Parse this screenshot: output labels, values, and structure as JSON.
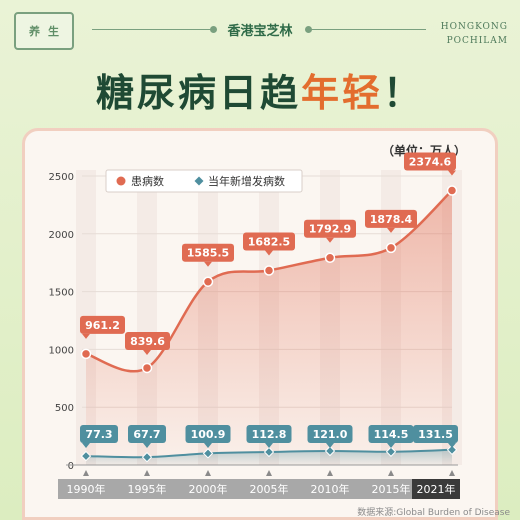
{
  "header": {
    "badge": [
      "养",
      "生"
    ],
    "brand": "香港宝芝林",
    "brand_en_line1": "HONGKONG",
    "brand_en_line2": "POCHILAM",
    "headline_main": "糖尿病日趋",
    "headline_accent": "年轻",
    "headline_end": "！"
  },
  "footer": {
    "source": "数据来源:Global Burden of Disease"
  },
  "colors": {
    "prevalence": "#e06b52",
    "incidence": "#4f8f9f",
    "year_bar_dark": "#3a3a3a",
    "year_bar_light": "#a8a8a8"
  },
  "chart_data": {
    "type": "line",
    "unit": "（单位：万人）",
    "x": [
      "1990年",
      "1995年",
      "2000年",
      "2005年",
      "2010年",
      "2015年",
      "2021年"
    ],
    "ylim": [
      0,
      2500
    ],
    "yticks": [
      0,
      500,
      1000,
      1500,
      2000,
      2500
    ],
    "legend_position": "top-left",
    "series": [
      {
        "name": "患病数",
        "values": [
          961.2,
          839.6,
          1585.5,
          1682.5,
          1792.9,
          1878.4,
          2374.6
        ],
        "labels": [
          "961.2",
          "839.6",
          "1585.5",
          "1682.5",
          "1792.9",
          "1878.4",
          "2374.6"
        ],
        "marker": "circle"
      },
      {
        "name": "当年新增发病数",
        "values": [
          77.3,
          67.7,
          100.9,
          112.8,
          121.0,
          114.5,
          131.5
        ],
        "labels": [
          "77.3",
          "67.7",
          "100.9",
          "112.8",
          "121.0",
          "114.5",
          "131.5"
        ],
        "marker": "diamond"
      }
    ]
  }
}
